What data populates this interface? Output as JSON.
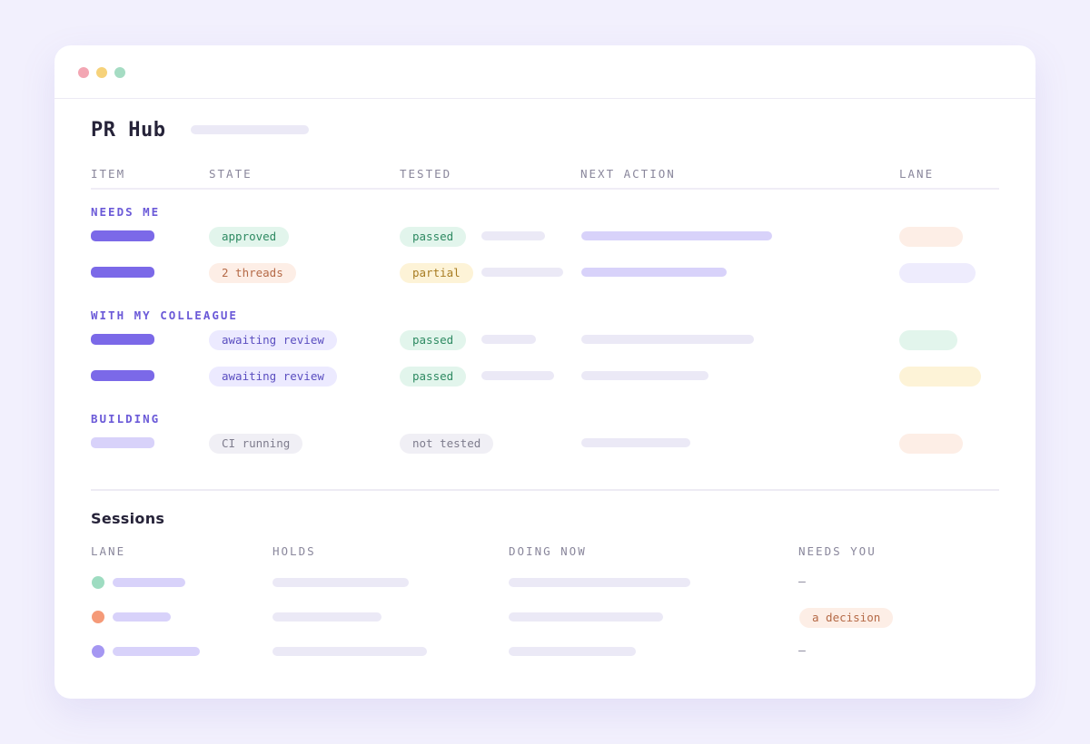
{
  "app": {
    "title": "PR Hub"
  },
  "pr_table": {
    "columns": [
      "ITEM",
      "STATE",
      "TESTED",
      "NEXT ACTION",
      "LANE"
    ],
    "groups": [
      {
        "label": "NEEDS ME",
        "rows": [
          {
            "state": "approved",
            "tested": "passed"
          },
          {
            "state": "2 threads",
            "tested": "partial"
          }
        ]
      },
      {
        "label": "WITH MY COLLEAGUE",
        "rows": [
          {
            "state": "awaiting review",
            "tested": "passed"
          },
          {
            "state": "awaiting review",
            "tested": "passed"
          }
        ]
      },
      {
        "label": "BUILDING",
        "rows": [
          {
            "state": "CI running",
            "tested": "not tested"
          }
        ]
      }
    ]
  },
  "sessions": {
    "title": "Sessions",
    "columns": [
      "LANE",
      "HOLDS",
      "DOING NOW",
      "NEEDS YOU"
    ],
    "rows": [
      {
        "lane_color": "#9edcc1",
        "needs_you": "–"
      },
      {
        "lane_color": "#f59a78",
        "needs_you": "a decision"
      },
      {
        "lane_color": "#a597f2",
        "needs_you": "–"
      }
    ]
  },
  "colors": {
    "accent": "#6b5ad8",
    "item_bar": "#7b69e8",
    "window_bg": "#ffffff",
    "page_bg": "#f2f0fd"
  }
}
